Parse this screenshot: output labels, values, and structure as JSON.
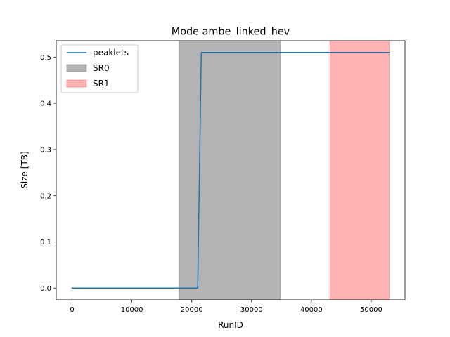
{
  "chart_data": {
    "type": "line",
    "title": "Mode ambe_linked_hev",
    "xlabel": "RunID",
    "ylabel": "Size [TB]",
    "xlim": [
      -2650,
      55650
    ],
    "ylim": [
      -0.0255,
      0.5355
    ],
    "xticks": [
      0,
      10000,
      20000,
      30000,
      40000,
      50000
    ],
    "xtick_labels": [
      "0",
      "10000",
      "20000",
      "30000",
      "40000",
      "50000"
    ],
    "yticks": [
      0.0,
      0.1,
      0.2,
      0.3,
      0.4,
      0.5
    ],
    "ytick_labels": [
      "0.0",
      "0.1",
      "0.2",
      "0.3",
      "0.4",
      "0.5"
    ],
    "grid": false,
    "legend_position": "upper-left",
    "series": [
      {
        "name": "peaklets",
        "color": "#1f77b4",
        "x": [
          0,
          21000,
          21600,
          53000
        ],
        "y": [
          0.0,
          0.0,
          0.51,
          0.51
        ]
      }
    ],
    "spans": [
      {
        "name": "SR0",
        "x_start": 17900,
        "x_end": 34800,
        "color": "#808080",
        "opacity": 0.6
      },
      {
        "name": "SR1",
        "x_start": 43100,
        "x_end": 53000,
        "color": "#ff0000",
        "opacity": 0.3
      }
    ],
    "legend": [
      {
        "label": "peaklets",
        "kind": "line",
        "color": "#1f77b4"
      },
      {
        "label": "SR0",
        "kind": "patch",
        "color": "#808080",
        "opacity": 0.6
      },
      {
        "label": "SR1",
        "kind": "patch",
        "color": "#ff0000",
        "opacity": 0.3
      }
    ]
  }
}
